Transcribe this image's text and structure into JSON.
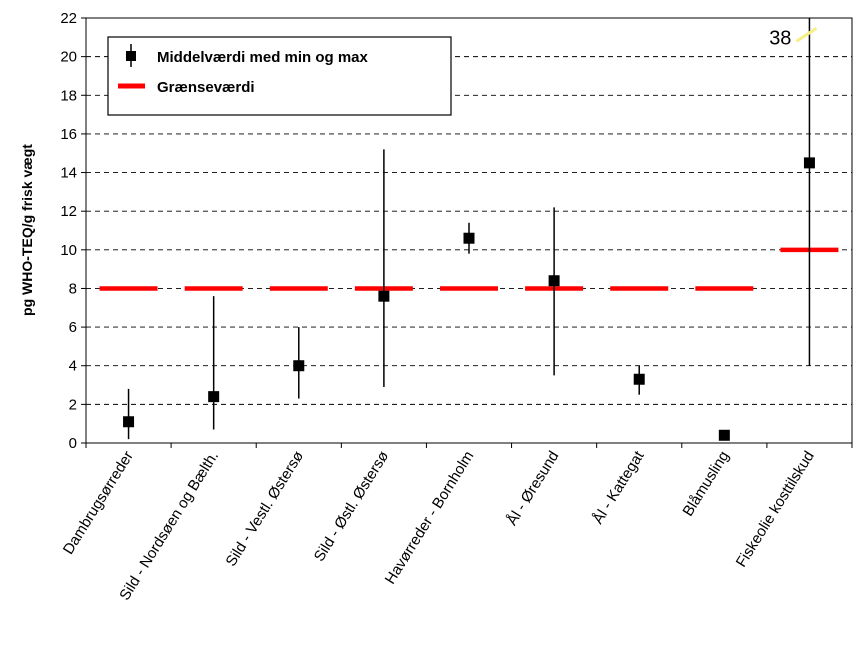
{
  "chart_data": {
    "type": "scatter",
    "ylabel": "pg WHO-TEQ/g frisk vægt",
    "ylim": [
      0,
      22
    ],
    "yticks": [
      0,
      2,
      4,
      6,
      8,
      10,
      12,
      14,
      16,
      18,
      20,
      22
    ],
    "grid": "horizontal dashed",
    "legend_position": "top-left",
    "categories": [
      "Dambrugsørreder",
      "Sild - Nordsøen og Bælth.",
      "Sild - Vestl. Østersø",
      "Sild - Østl. Østersø",
      "Havørreder - Bornholm",
      "Ål - Øresund",
      "Ål  - Kattegat",
      "Blåmusling",
      "Fiskeolie kosttilskud"
    ],
    "series": [
      {
        "name": "Middelværdi med min og max",
        "color": "#000000",
        "marker": "square",
        "mean": [
          1.1,
          2.4,
          4.0,
          7.6,
          10.6,
          8.4,
          3.3,
          0.4,
          14.5
        ],
        "min": [
          0.2,
          0.7,
          2.3,
          2.9,
          9.8,
          3.5,
          2.5,
          null,
          4.0
        ],
        "max": [
          2.8,
          7.6,
          6.0,
          15.2,
          11.4,
          12.2,
          4.0,
          null,
          38
        ]
      },
      {
        "name": "Grænseværdi",
        "color": "#ff0000",
        "marker": "dash",
        "values": [
          8,
          8,
          8,
          8,
          8,
          8,
          8,
          8,
          10
        ]
      }
    ],
    "annotations": [
      {
        "text": "38",
        "category_index": 8,
        "near_value": 21
      }
    ]
  }
}
